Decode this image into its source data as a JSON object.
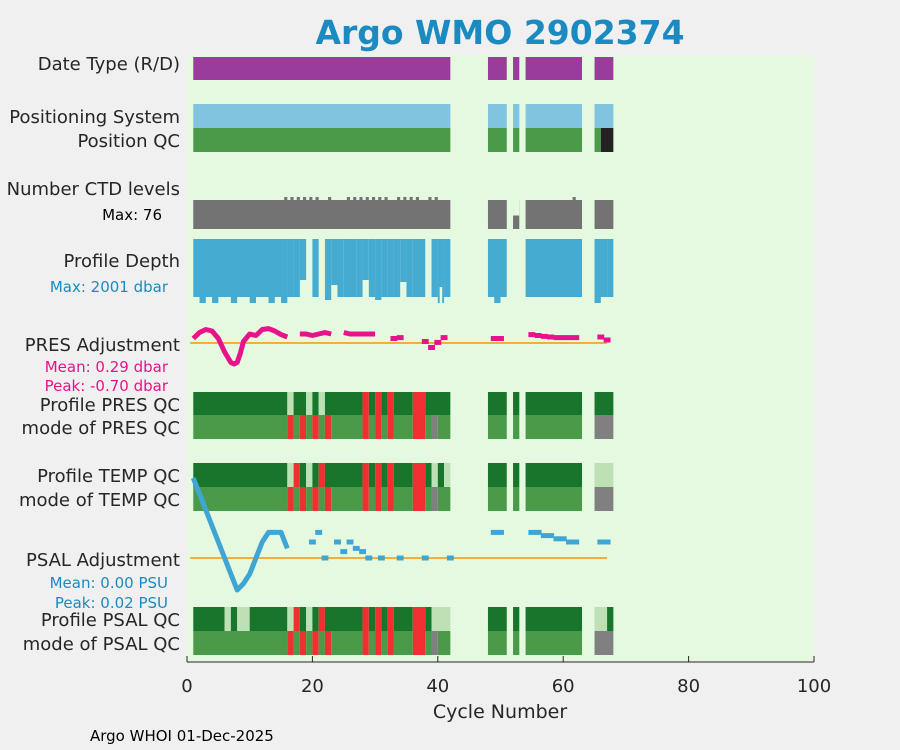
{
  "chart_data": {
    "type": "heatmap",
    "title": "Argo WMO 2902374",
    "xlabel": "Cycle Number",
    "xlim": [
      0,
      100
    ],
    "xticks": [
      0,
      20,
      40,
      60,
      80,
      100
    ],
    "footer": "Argo WHOI 01-Dec-2025",
    "colors": {
      "background": "#e4f9e0",
      "figure": "#f0f0f0",
      "title": "#1a8ac0",
      "realtime": "#9a3d9a",
      "positioning": "#80c4e0",
      "qc_good": "#4a9a4a",
      "qc_dark_good": "#18752c",
      "qc_light": "#bde0b4",
      "qc_bad": "#f03030",
      "qc_gray": "#808080",
      "qc_black": "#222222",
      "ctd_levels": "#737373",
      "depth": "#46abd0",
      "pres_adj": "#e8138a",
      "psal_adj": "#3fa6d4",
      "zero_line": "#f0b040",
      "pres_stat": "#e8138a",
      "psal_stat": "#1a8ac0"
    },
    "row_labels": {
      "date_type": "Date Type (R/D)",
      "positioning": "Positioning System",
      "position_qc": "Position QC",
      "ctd_levels": "Number CTD levels",
      "profile_depth": "Profile Depth",
      "pres_adj": "PRES Adjustment",
      "profile_pres_qc": "Profile PRES QC",
      "mode_pres_qc": "mode of PRES QC",
      "profile_temp_qc": "Profile TEMP QC",
      "mode_temp_qc": "mode of TEMP QC",
      "psal_adj": "PSAL Adjustment",
      "profile_psal_qc": "Profile PSAL QC",
      "mode_psal_qc": "mode of PSAL QC"
    },
    "stats": {
      "ctd_max": "Max: 76",
      "depth_max": "Max: 2001 dbar",
      "pres_mean": "Mean: 0.29 dbar",
      "pres_peak": "Peak: -0.70 dbar",
      "psal_mean": "Mean: 0.00 PSU",
      "psal_peak": "Peak: 0.02 PSU"
    },
    "bars": {
      "date_type": [
        [
          1,
          42,
          "realtime"
        ],
        [
          48,
          51,
          "realtime"
        ],
        [
          52,
          53,
          "realtime"
        ],
        [
          54,
          63,
          "realtime"
        ],
        [
          65,
          68,
          "realtime"
        ]
      ],
      "positioning": [
        [
          1,
          42,
          "positioning"
        ],
        [
          48,
          51,
          "positioning"
        ],
        [
          52,
          53,
          "positioning"
        ],
        [
          54,
          63,
          "positioning"
        ],
        [
          65,
          68,
          "positioning"
        ]
      ],
      "position_qc": [
        [
          1,
          42,
          "qc_good"
        ],
        [
          48,
          51,
          "qc_good"
        ],
        [
          52,
          53,
          "qc_good"
        ],
        [
          54,
          63,
          "qc_good"
        ],
        [
          65,
          66,
          "qc_good"
        ],
        [
          66,
          68,
          "qc_black"
        ]
      ],
      "ctd_levels": [
        [
          1,
          42,
          "ctd_levels"
        ],
        [
          48,
          51,
          "ctd_levels"
        ],
        [
          52,
          53,
          "ctd_levels"
        ],
        [
          54,
          63,
          "ctd_levels"
        ],
        [
          65,
          68,
          "ctd_levels"
        ]
      ],
      "profile_pres_qc": [
        [
          1,
          16,
          "qc_dark_good"
        ],
        [
          16,
          17,
          "qc_light"
        ],
        [
          17,
          19,
          "qc_dark_good"
        ],
        [
          19,
          20,
          "qc_light"
        ],
        [
          20,
          21,
          "qc_dark_good"
        ],
        [
          21,
          22,
          "qc_light"
        ],
        [
          22,
          28,
          "qc_dark_good"
        ],
        [
          28,
          29,
          "qc_bad"
        ],
        [
          29,
          30,
          "qc_dark_good"
        ],
        [
          30,
          31,
          "qc_bad"
        ],
        [
          31,
          32,
          "qc_dark_good"
        ],
        [
          32,
          33,
          "qc_bad"
        ],
        [
          33,
          36,
          "qc_dark_good"
        ],
        [
          36,
          38,
          "qc_bad"
        ],
        [
          38,
          42,
          "qc_dark_good"
        ],
        [
          48,
          51,
          "qc_dark_good"
        ],
        [
          52,
          53,
          "qc_dark_good"
        ],
        [
          54,
          63,
          "qc_dark_good"
        ],
        [
          65,
          68,
          "qc_dark_good"
        ]
      ],
      "mode_pres_qc": [
        [
          1,
          16,
          "qc_good"
        ],
        [
          16,
          17,
          "qc_bad"
        ],
        [
          17,
          18,
          "qc_good"
        ],
        [
          18,
          19,
          "qc_bad"
        ],
        [
          19,
          20,
          "qc_good"
        ],
        [
          20,
          21,
          "qc_bad"
        ],
        [
          21,
          22,
          "qc_good"
        ],
        [
          22,
          23,
          "qc_bad"
        ],
        [
          23,
          28,
          "qc_good"
        ],
        [
          28,
          29,
          "qc_bad"
        ],
        [
          29,
          30,
          "qc_good"
        ],
        [
          30,
          31,
          "qc_bad"
        ],
        [
          31,
          32,
          "qc_good"
        ],
        [
          32,
          33,
          "qc_bad"
        ],
        [
          33,
          36,
          "qc_good"
        ],
        [
          36,
          38,
          "qc_bad"
        ],
        [
          38,
          39,
          "qc_good"
        ],
        [
          39,
          40,
          "qc_gray"
        ],
        [
          40,
          42,
          "qc_good"
        ],
        [
          48,
          51,
          "qc_good"
        ],
        [
          52,
          53,
          "qc_good"
        ],
        [
          54,
          63,
          "qc_good"
        ],
        [
          65,
          68,
          "qc_gray"
        ]
      ],
      "profile_temp_qc": [
        [
          1,
          16,
          "qc_dark_good"
        ],
        [
          16,
          17,
          "qc_light"
        ],
        [
          17,
          18,
          "qc_bad"
        ],
        [
          18,
          19,
          "qc_dark_good"
        ],
        [
          19,
          20,
          "qc_light"
        ],
        [
          20,
          21,
          "qc_dark_good"
        ],
        [
          21,
          22,
          "qc_bad"
        ],
        [
          22,
          28,
          "qc_dark_good"
        ],
        [
          28,
          29,
          "qc_bad"
        ],
        [
          29,
          30,
          "qc_dark_good"
        ],
        [
          30,
          31,
          "qc_bad"
        ],
        [
          31,
          32,
          "qc_dark_good"
        ],
        [
          32,
          33,
          "qc_bad"
        ],
        [
          33,
          36,
          "qc_dark_good"
        ],
        [
          36,
          38,
          "qc_bad"
        ],
        [
          38,
          39,
          "qc_dark_good"
        ],
        [
          39,
          40,
          "qc_light"
        ],
        [
          40,
          41,
          "qc_dark_good"
        ],
        [
          41,
          42,
          "qc_light"
        ],
        [
          48,
          51,
          "qc_dark_good"
        ],
        [
          52,
          53,
          "qc_dark_good"
        ],
        [
          54,
          63,
          "qc_dark_good"
        ],
        [
          65,
          68,
          "qc_light"
        ]
      ],
      "mode_temp_qc": [
        [
          1,
          16,
          "qc_good"
        ],
        [
          16,
          17,
          "qc_bad"
        ],
        [
          17,
          18,
          "qc_good"
        ],
        [
          18,
          19,
          "qc_bad"
        ],
        [
          19,
          20,
          "qc_good"
        ],
        [
          20,
          21,
          "qc_bad"
        ],
        [
          21,
          22,
          "qc_good"
        ],
        [
          22,
          23,
          "qc_bad"
        ],
        [
          23,
          28,
          "qc_good"
        ],
        [
          28,
          29,
          "qc_bad"
        ],
        [
          29,
          30,
          "qc_good"
        ],
        [
          30,
          31,
          "qc_bad"
        ],
        [
          31,
          32,
          "qc_good"
        ],
        [
          32,
          33,
          "qc_bad"
        ],
        [
          33,
          36,
          "qc_good"
        ],
        [
          36,
          38,
          "qc_bad"
        ],
        [
          38,
          39,
          "qc_good"
        ],
        [
          39,
          40,
          "qc_gray"
        ],
        [
          40,
          42,
          "qc_good"
        ],
        [
          48,
          51,
          "qc_good"
        ],
        [
          52,
          53,
          "qc_good"
        ],
        [
          54,
          63,
          "qc_good"
        ],
        [
          65,
          68,
          "qc_gray"
        ]
      ],
      "profile_psal_qc": [
        [
          1,
          6,
          "qc_dark_good"
        ],
        [
          6,
          7,
          "qc_light"
        ],
        [
          7,
          8,
          "qc_dark_good"
        ],
        [
          8,
          10,
          "qc_light"
        ],
        [
          10,
          16,
          "qc_dark_good"
        ],
        [
          16,
          17,
          "qc_light"
        ],
        [
          17,
          18,
          "qc_bad"
        ],
        [
          18,
          19,
          "qc_dark_good"
        ],
        [
          19,
          20,
          "qc_light"
        ],
        [
          20,
          21,
          "qc_dark_good"
        ],
        [
          21,
          22,
          "qc_bad"
        ],
        [
          22,
          28,
          "qc_dark_good"
        ],
        [
          28,
          29,
          "qc_bad"
        ],
        [
          29,
          30,
          "qc_dark_good"
        ],
        [
          30,
          31,
          "qc_bad"
        ],
        [
          31,
          32,
          "qc_dark_good"
        ],
        [
          32,
          33,
          "qc_bad"
        ],
        [
          33,
          36,
          "qc_dark_good"
        ],
        [
          36,
          38,
          "qc_bad"
        ],
        [
          38,
          39,
          "qc_dark_good"
        ],
        [
          39,
          42,
          "qc_light"
        ],
        [
          48,
          51,
          "qc_dark_good"
        ],
        [
          52,
          53,
          "qc_dark_good"
        ],
        [
          54,
          63,
          "qc_dark_good"
        ],
        [
          65,
          67,
          "qc_light"
        ],
        [
          67,
          68,
          "qc_dark_good"
        ]
      ],
      "mode_psal_qc": [
        [
          1,
          16,
          "qc_good"
        ],
        [
          16,
          17,
          "qc_bad"
        ],
        [
          17,
          18,
          "qc_good"
        ],
        [
          18,
          19,
          "qc_bad"
        ],
        [
          19,
          20,
          "qc_good"
        ],
        [
          20,
          21,
          "qc_bad"
        ],
        [
          21,
          22,
          "qc_good"
        ],
        [
          22,
          23,
          "qc_bad"
        ],
        [
          23,
          28,
          "qc_good"
        ],
        [
          28,
          29,
          "qc_bad"
        ],
        [
          29,
          30,
          "qc_good"
        ],
        [
          30,
          31,
          "qc_bad"
        ],
        [
          31,
          32,
          "qc_good"
        ],
        [
          32,
          33,
          "qc_bad"
        ],
        [
          33,
          36,
          "qc_good"
        ],
        [
          36,
          38,
          "qc_bad"
        ],
        [
          38,
          39,
          "qc_good"
        ],
        [
          39,
          40,
          "qc_gray"
        ],
        [
          40,
          42,
          "qc_good"
        ],
        [
          48,
          51,
          "qc_good"
        ],
        [
          52,
          53,
          "qc_good"
        ],
        [
          54,
          63,
          "qc_good"
        ],
        [
          65,
          68,
          "qc_gray"
        ]
      ]
    },
    "ctd_levels_markers": [
      16,
      17,
      18,
      19,
      20,
      21,
      23,
      26,
      27,
      28,
      29,
      30,
      31,
      32,
      34,
      35,
      36,
      37,
      39,
      40,
      62
    ],
    "ctd_levels_max": 76,
    "ctd_levels_dips": [
      [
        52,
        53,
        0.5
      ]
    ],
    "profile_depth_note": "cycles shallower than the full depth are shown with a shortened bar",
    "profile_depth_full": [
      [
        1,
        16
      ],
      [
        17,
        18
      ],
      [
        24,
        25
      ],
      [
        26,
        27
      ],
      [
        29,
        30
      ],
      [
        31,
        32
      ],
      [
        33,
        34
      ],
      [
        36,
        37
      ],
      [
        39,
        40
      ],
      [
        40,
        41
      ],
      [
        41,
        42
      ],
      [
        48,
        51
      ],
      [
        54,
        63
      ],
      [
        65,
        67
      ],
      [
        67,
        68
      ]
    ],
    "profile_depth_short": [
      [
        2,
        3
      ],
      [
        4,
        5
      ],
      [
        7,
        8
      ],
      [
        10,
        11
      ],
      [
        13,
        14
      ],
      [
        15,
        16
      ],
      [
        40,
        41
      ],
      [
        49,
        50
      ],
      [
        65,
        66
      ]
    ],
    "profile_depth_cycles": [
      [
        16,
        17
      ],
      [
        18,
        19
      ],
      [
        20,
        21
      ],
      [
        22,
        23
      ],
      [
        23,
        24
      ],
      [
        25,
        26
      ],
      [
        27,
        28
      ],
      [
        28,
        29
      ],
      [
        30,
        31
      ],
      [
        32,
        33
      ],
      [
        34,
        35
      ],
      [
        35,
        36
      ],
      [
        37,
        38
      ]
    ],
    "pres_adjustment": {
      "x": [
        1,
        2,
        3,
        4,
        5,
        6,
        7,
        7.5,
        8,
        8.5,
        9,
        10,
        11,
        12,
        13,
        14,
        15,
        16,
        17,
        18,
        19,
        20,
        22,
        23,
        24,
        25,
        26,
        27,
        28,
        29,
        30
      ],
      "y": [
        0.15,
        0.35,
        0.45,
        0.4,
        0.15,
        -0.3,
        -0.65,
        -0.7,
        -0.65,
        -0.35,
        0.05,
        0.3,
        0.25,
        0.45,
        0.48,
        0.4,
        0.28,
        0.2,
        null,
        0.3,
        0.3,
        0.25,
        0.35,
        0.3,
        null,
        0.35,
        0.3,
        0.3,
        0.3,
        0.3,
        0.3
      ],
      "extra": [
        [
          33,
          0.15
        ],
        [
          34,
          0.18
        ],
        [
          38,
          0.05
        ],
        [
          39,
          -0.15
        ],
        [
          40,
          0.02
        ],
        [
          41,
          0.18
        ],
        [
          49,
          0.15
        ],
        [
          50,
          0.15
        ],
        [
          55,
          0.28
        ],
        [
          56,
          0.25
        ],
        [
          57,
          0.22
        ],
        [
          58,
          0.2
        ],
        [
          59,
          0.18
        ],
        [
          60,
          0.18
        ],
        [
          61,
          0.18
        ],
        [
          62,
          0.18
        ],
        [
          66,
          0.2
        ],
        [
          67,
          0.1
        ]
      ],
      "ylim": [
        -1,
        1
      ]
    },
    "psal_adjustment": {
      "x": [
        1,
        2,
        3,
        4,
        5,
        6,
        7,
        8,
        9,
        10,
        11,
        12,
        13,
        14,
        15,
        16
      ],
      "y": [
        0.025,
        0.02,
        0.015,
        0.01,
        0.005,
        0.0,
        -0.005,
        -0.01,
        -0.008,
        -0.005,
        0.0,
        0.005,
        0.008,
        0.008,
        0.008,
        0.003
      ],
      "extra": [
        [
          20,
          0.005
        ],
        [
          21,
          0.008
        ],
        [
          22,
          0.0
        ],
        [
          24,
          0.005
        ],
        [
          25,
          0.002
        ],
        [
          26,
          0.005
        ],
        [
          27,
          0.003
        ],
        [
          28,
          0.002
        ],
        [
          29,
          0.0
        ],
        [
          31,
          0.0
        ],
        [
          34,
          0.0
        ],
        [
          38,
          0.0
        ],
        [
          42,
          0.0
        ],
        [
          49,
          0.008
        ],
        [
          50,
          0.008
        ],
        [
          55,
          0.008
        ],
        [
          56,
          0.008
        ],
        [
          57,
          0.007
        ],
        [
          58,
          0.007
        ],
        [
          59,
          0.006
        ],
        [
          60,
          0.006
        ],
        [
          61,
          0.005
        ],
        [
          62,
          0.005
        ],
        [
          66,
          0.005
        ],
        [
          67,
          0.005
        ]
      ],
      "ylim": [
        -0.05,
        0.05
      ],
      "zero_line_xlim": [
        0,
        67
      ]
    },
    "zero_lines": {
      "pres_adj_xlim": [
        0,
        67
      ]
    }
  }
}
